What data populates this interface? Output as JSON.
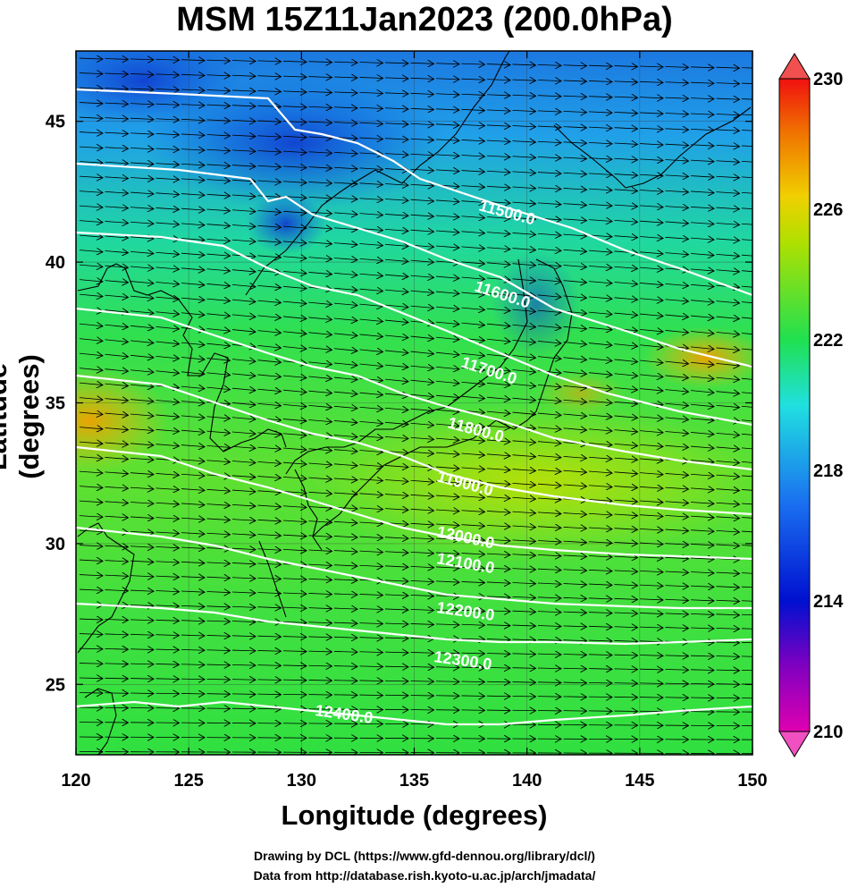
{
  "title": "MSM 15Z11Jan2023 (200.0hPa)",
  "xlabel": "Longitude (degrees)",
  "ylabel": "Latitude  (degrees)",
  "credits": {
    "line1": "Drawing by DCL (https://www.gfd-dennou.org/library/dcl/)",
    "line2": "Data from http://database.rish.kyoto-u.ac.jp/arch/jmadata/"
  },
  "chart_data": {
    "type": "heatmap",
    "x_range": [
      120,
      150
    ],
    "y_range": [
      22.5,
      47.5
    ],
    "x_ticks": [
      "120",
      "125",
      "130",
      "135",
      "140",
      "145",
      "150"
    ],
    "y_ticks": [
      "25",
      "30",
      "35",
      "40",
      "45"
    ],
    "colorbar": {
      "range": [
        210,
        230
      ],
      "ticks": [
        "210",
        "214",
        "218",
        "222",
        "226",
        "230"
      ],
      "colors": [
        "#e000b0",
        "#7000c0",
        "#0010d0",
        "#1a70f0",
        "#20e0e0",
        "#20e050",
        "#b0e000",
        "#f0d000",
        "#f07000",
        "#f01010"
      ]
    },
    "contour_labels": [
      "11500.0",
      "11600.0",
      "11700.0",
      "11800.0",
      "11900.0",
      "12000.0",
      "12100.0",
      "12200.0",
      "12300.0",
      "12400.0"
    ]
  }
}
